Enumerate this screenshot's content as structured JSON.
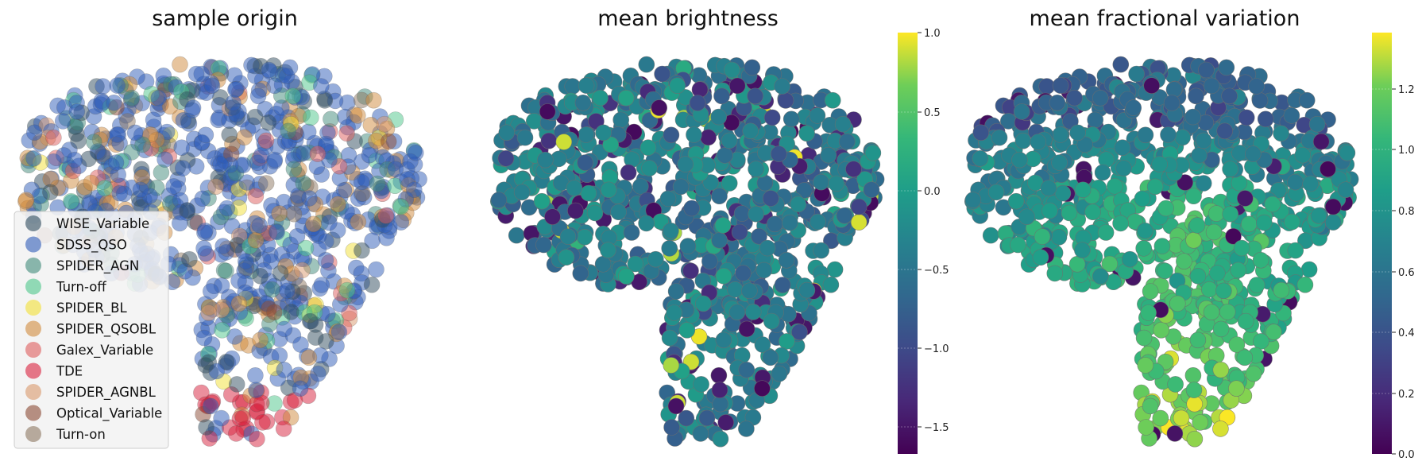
{
  "chart_data": [
    {
      "type": "scatter",
      "title": "sample origin",
      "xlabel": "",
      "ylabel": "",
      "grid": false,
      "axes_visible": false,
      "legend_position": "lower-left",
      "legend": [
        {
          "name": "WISE_Variable",
          "color": "#2f4b5e"
        },
        {
          "name": "SDSS_QSO",
          "color": "#2e5cb8"
        },
        {
          "name": "SPIDER_AGN",
          "color": "#3f8a7a"
        },
        {
          "name": "Turn-off",
          "color": "#4cc68a"
        },
        {
          "name": "SPIDER_BL",
          "color": "#f2e034"
        },
        {
          "name": "SPIDER_QSOBL",
          "color": "#d08a3c"
        },
        {
          "name": "Galex_Variable",
          "color": "#dd5c5c"
        },
        {
          "name": "TDE",
          "color": "#d8203c"
        },
        {
          "name": "SPIDER_AGNBL",
          "color": "#d9976b"
        },
        {
          "name": "Optical_Variable",
          "color": "#8a4a34"
        },
        {
          "name": "Turn-on",
          "color": "#8c7660"
        }
      ]
    },
    {
      "type": "scatter",
      "title": "mean brightness",
      "xlabel": "",
      "ylabel": "",
      "grid": false,
      "axes_visible": false,
      "colormap": "viridis",
      "colorbar": {
        "min": -1.7,
        "max": 1.0,
        "ticks": [
          "1.0",
          "0.5",
          "0.0",
          "−0.5",
          "−1.0",
          "−1.5"
        ]
      }
    },
    {
      "type": "scatter",
      "title": "mean fractional variation",
      "xlabel": "",
      "ylabel": "",
      "grid": false,
      "axes_visible": false,
      "colormap": "viridis",
      "colorbar": {
        "min": 0.0,
        "max": 1.35,
        "ticks": [
          "1.2",
          "1.0",
          "0.8",
          "0.6",
          "0.4",
          "0.2",
          "0.0"
        ]
      }
    }
  ]
}
